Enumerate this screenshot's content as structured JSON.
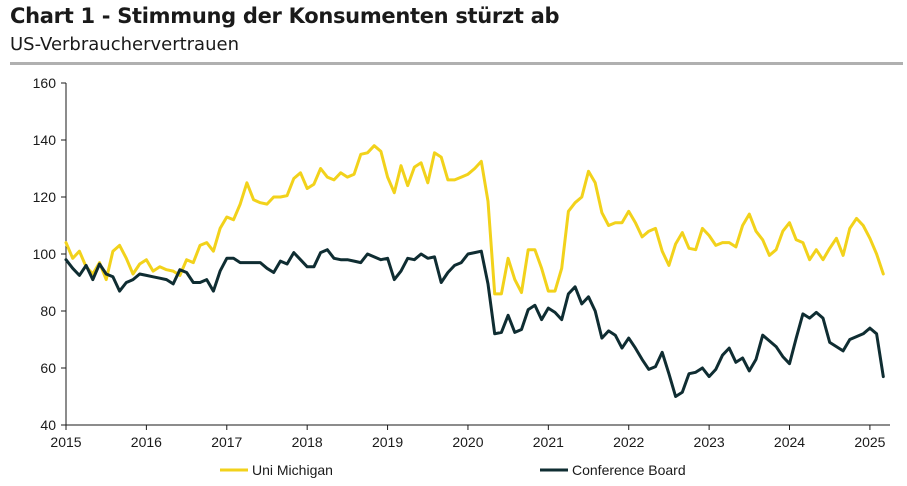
{
  "header": {
    "title": "Chart 1 - Stimmung der Konsumenten stürzt ab",
    "subtitle": "US-Verbrauchervertrauen"
  },
  "colors": {
    "uni_michigan": "#f2d21b",
    "conference_board": "#0f2d32",
    "rule": "#b0b0b0",
    "axis": "#1a1a1a"
  },
  "chart_data": {
    "type": "line",
    "title": "Chart 1 - Stimmung der Konsumenten stürzt ab",
    "subtitle": "US-Verbrauchervertrauen",
    "xlabel": "",
    "ylabel": "",
    "ylim": [
      40,
      160
    ],
    "yticks": [
      40,
      60,
      80,
      100,
      120,
      140,
      160
    ],
    "xlim": [
      2015.0,
      2025.25
    ],
    "xticks": [
      "2015",
      "2016",
      "2017",
      "2018",
      "2019",
      "2020",
      "2021",
      "2022",
      "2023",
      "2024",
      "2025"
    ],
    "x_start": "2015-01",
    "frequency": "monthly",
    "legend_position": "bottom",
    "grid": false,
    "series": [
      {
        "name": "Uni Michigan",
        "color": "#f2d21b",
        "values": [
          104,
          98.5,
          101,
          95.5,
          93,
          97,
          91,
          101,
          103,
          98.5,
          93,
          96.5,
          98,
          94,
          95.5,
          94.5,
          94,
          92.5,
          98,
          97,
          103,
          104,
          101,
          109,
          113,
          112,
          117.5,
          125,
          119,
          118,
          117.5,
          120,
          120,
          120.5,
          126.5,
          128.5,
          123,
          124.5,
          130,
          127,
          126,
          128.5,
          127,
          128,
          135,
          135.5,
          138,
          136,
          127,
          121.5,
          131,
          124,
          130.5,
          132,
          125,
          135.5,
          134,
          126,
          126,
          127,
          128,
          130,
          132.5,
          118.5,
          86,
          86,
          98.5,
          91,
          86.5,
          101.5,
          101.5,
          95,
          87,
          87,
          95,
          115,
          118,
          120,
          129,
          125,
          114.5,
          110,
          111,
          111,
          115,
          111,
          106,
          108,
          109,
          101,
          96,
          103.5,
          107.5,
          102,
          101.5,
          109,
          106.5,
          103,
          104,
          104,
          102.5,
          110,
          114,
          108,
          105,
          99.5,
          101.5,
          108,
          111,
          105,
          104,
          98,
          101.5,
          98,
          102,
          105.5,
          99.5,
          109,
          112.5,
          110,
          105.5,
          100,
          93
        ]
      },
      {
        "name": "Conference Board",
        "color": "#0f2d32",
        "values": [
          98,
          95,
          92.5,
          96,
          91,
          96.5,
          93,
          92,
          87,
          90,
          91,
          93,
          92.5,
          92,
          91.5,
          91,
          89.5,
          94.5,
          93.5,
          90,
          90,
          91,
          87,
          94,
          98.5,
          98.5,
          97,
          97,
          97,
          97,
          95,
          93.5,
          97.5,
          96.5,
          100.5,
          98,
          95.5,
          95.5,
          100.5,
          101.5,
          98.5,
          98,
          98,
          97.5,
          97,
          100,
          99,
          98,
          98.5,
          91,
          94,
          98.5,
          98,
          100,
          98.5,
          99,
          90,
          93.5,
          96,
          97,
          100,
          100.5,
          101,
          89.5,
          72,
          72.5,
          78.5,
          72.5,
          73.5,
          80.5,
          82,
          77,
          81,
          79.5,
          77,
          86,
          88.5,
          82.5,
          85,
          80,
          70.5,
          73,
          71.5,
          67,
          70.5,
          67,
          63,
          59.5,
          60.5,
          65.5,
          58,
          50,
          51.5,
          58,
          58.5,
          60,
          57,
          59.5,
          64.5,
          67,
          62,
          63.5,
          59,
          63,
          71.5,
          69.5,
          67.5,
          64,
          61.5,
          70.5,
          79,
          77.5,
          79.5,
          77.5,
          69,
          67.5,
          66,
          70,
          71,
          72,
          74,
          72,
          57
        ]
      }
    ]
  }
}
